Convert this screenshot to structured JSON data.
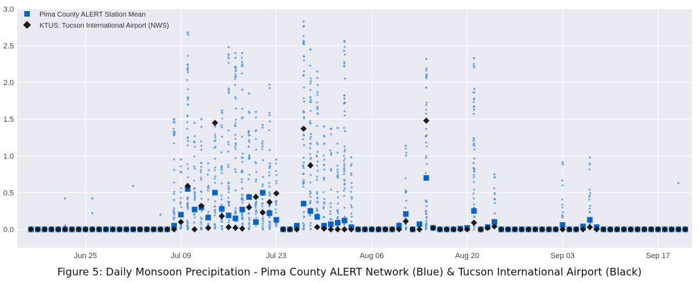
{
  "caption": "Figure 5: Daily Monsoon Precipitation - Pima County ALERT Network (Blue) & Tucson International Airport (Black)",
  "chart_data": {
    "type": "scatter",
    "x_type": "date",
    "xlim": [
      "2021-06-15",
      "2021-09-22"
    ],
    "ylim": [
      -0.25,
      3.0
    ],
    "y_ticks": [
      0.0,
      0.5,
      1.0,
      1.5,
      2.0,
      2.5,
      3.0
    ],
    "y_tick_labels": [
      "0.0",
      "0.5",
      "1.0",
      "1.5",
      "2.0",
      "2.5",
      "3.0"
    ],
    "x_ticks": [
      "2021-06-25",
      "2021-07-09",
      "2021-07-23",
      "2021-08-06",
      "2021-08-20",
      "2021-09-03",
      "2021-09-17"
    ],
    "x_tick_labels": [
      "Jun 25",
      "Jul 09",
      "Jul 23",
      "Aug 06",
      "Aug 20",
      "Sep 03",
      "Sep 17"
    ],
    "grid": true,
    "legend_position": "top-left",
    "colors": {
      "background": "#eaeaf2",
      "grid": "#ffffff",
      "station": "#4a90e2",
      "mean": "#0a63c9",
      "airport": "#1b1b1b"
    },
    "series": [
      {
        "name": "Pima County ALERT Station Mean",
        "marker": "square",
        "color": "#0a63c9",
        "points": [
          [
            "2021-07-08",
            0.05
          ],
          [
            "2021-07-09",
            0.2
          ],
          [
            "2021-07-10",
            0.55
          ],
          [
            "2021-07-11",
            0.27
          ],
          [
            "2021-07-12",
            0.3
          ],
          [
            "2021-07-13",
            0.16
          ],
          [
            "2021-07-14",
            0.5
          ],
          [
            "2021-07-15",
            0.28
          ],
          [
            "2021-07-16",
            0.19
          ],
          [
            "2021-07-17",
            0.15
          ],
          [
            "2021-07-18",
            0.27
          ],
          [
            "2021-07-19",
            0.44
          ],
          [
            "2021-07-20",
            0.1
          ],
          [
            "2021-07-21",
            0.5
          ],
          [
            "2021-07-22",
            0.22
          ],
          [
            "2021-07-23",
            0.13
          ],
          [
            "2021-07-26",
            0.05
          ],
          [
            "2021-07-27",
            0.35
          ],
          [
            "2021-07-28",
            0.25
          ],
          [
            "2021-07-29",
            0.17
          ],
          [
            "2021-07-30",
            0.05
          ],
          [
            "2021-07-31",
            0.07
          ],
          [
            "2021-08-01",
            0.09
          ],
          [
            "2021-08-02",
            0.12
          ],
          [
            "2021-08-03",
            0.03
          ],
          [
            "2021-08-10",
            0.05
          ],
          [
            "2021-08-11",
            0.21
          ],
          [
            "2021-08-13",
            0.07
          ],
          [
            "2021-08-14",
            0.7
          ],
          [
            "2021-08-15",
            0.02
          ],
          [
            "2021-08-19",
            0.01
          ],
          [
            "2021-08-20",
            0.02
          ],
          [
            "2021-08-21",
            0.25
          ],
          [
            "2021-08-23",
            0.03
          ],
          [
            "2021-08-24",
            0.1
          ],
          [
            "2021-09-03",
            0.06
          ],
          [
            "2021-09-06",
            0.04
          ],
          [
            "2021-09-07",
            0.13
          ],
          [
            "2021-09-08",
            0.03
          ]
        ]
      },
      {
        "name": "KTUS: Tucson International Airport (NWS)",
        "marker": "diamond",
        "color": "#1b1b1b",
        "points": [
          [
            "2021-07-09",
            0.1
          ],
          [
            "2021-07-10",
            0.59
          ],
          [
            "2021-07-11",
            0.0
          ],
          [
            "2021-07-12",
            0.32
          ],
          [
            "2021-07-13",
            0.02
          ],
          [
            "2021-07-14",
            1.45
          ],
          [
            "2021-07-15",
            0.18
          ],
          [
            "2021-07-16",
            0.03
          ],
          [
            "2021-07-17",
            0.02
          ],
          [
            "2021-07-18",
            0.01
          ],
          [
            "2021-07-19",
            0.3
          ],
          [
            "2021-07-20",
            0.44
          ],
          [
            "2021-07-21",
            0.23
          ],
          [
            "2021-07-22",
            0.37
          ],
          [
            "2021-07-23",
            0.49
          ],
          [
            "2021-07-27",
            1.37
          ],
          [
            "2021-07-28",
            0.87
          ],
          [
            "2021-07-29",
            0.03
          ],
          [
            "2021-07-30",
            0.01
          ],
          [
            "2021-08-11",
            0.11
          ],
          [
            "2021-08-14",
            1.48
          ],
          [
            "2021-08-15",
            0.02
          ],
          [
            "2021-08-21",
            0.09
          ],
          [
            "2021-08-23",
            0.02
          ],
          [
            "2021-08-24",
            0.04
          ],
          [
            "2021-09-07",
            0.03
          ]
        ]
      }
    ],
    "station_scatter": [
      [
        "2021-06-22",
        0.42
      ],
      [
        "2021-06-22",
        0.05
      ],
      [
        "2021-06-26",
        0.42
      ],
      [
        "2021-06-26",
        0.22
      ],
      [
        "2021-07-02",
        0.59
      ],
      [
        "2021-07-06",
        0.2
      ],
      [
        "2021-07-08",
        1.5
      ],
      [
        "2021-07-08",
        0.4
      ],
      [
        "2021-07-09",
        0.95
      ],
      [
        "2021-07-10",
        2.68
      ],
      [
        "2021-07-10",
        1.25
      ],
      [
        "2021-07-11",
        1.45
      ],
      [
        "2021-07-12",
        1.5
      ],
      [
        "2021-07-13",
        0.9
      ],
      [
        "2021-07-14",
        1.4
      ],
      [
        "2021-07-15",
        1.62
      ],
      [
        "2021-07-16",
        2.48
      ],
      [
        "2021-07-17",
        2.4
      ],
      [
        "2021-07-18",
        2.4
      ],
      [
        "2021-07-18",
        1.9
      ],
      [
        "2021-07-19",
        1.85
      ],
      [
        "2021-07-20",
        1.6
      ],
      [
        "2021-07-21",
        1.42
      ],
      [
        "2021-07-22",
        1.97
      ],
      [
        "2021-07-23",
        0.95
      ],
      [
        "2021-07-27",
        2.83
      ],
      [
        "2021-07-27",
        2.1
      ],
      [
        "2021-07-28",
        2.45
      ],
      [
        "2021-07-28",
        1.8
      ],
      [
        "2021-07-29",
        2.15
      ],
      [
        "2021-07-30",
        1.4
      ],
      [
        "2021-07-31",
        1.37
      ],
      [
        "2021-08-01",
        1.38
      ],
      [
        "2021-08-02",
        2.56
      ],
      [
        "2021-08-02",
        1.78
      ],
      [
        "2021-08-03",
        0.98
      ],
      [
        "2021-08-11",
        1.14
      ],
      [
        "2021-08-14",
        2.32
      ],
      [
        "2021-08-14",
        1.93
      ],
      [
        "2021-08-21",
        2.33
      ],
      [
        "2021-08-21",
        1.63
      ],
      [
        "2021-08-24",
        0.75
      ],
      [
        "2021-09-03",
        0.91
      ],
      [
        "2021-09-07",
        0.98
      ],
      [
        "2021-09-20",
        0.63
      ]
    ]
  }
}
